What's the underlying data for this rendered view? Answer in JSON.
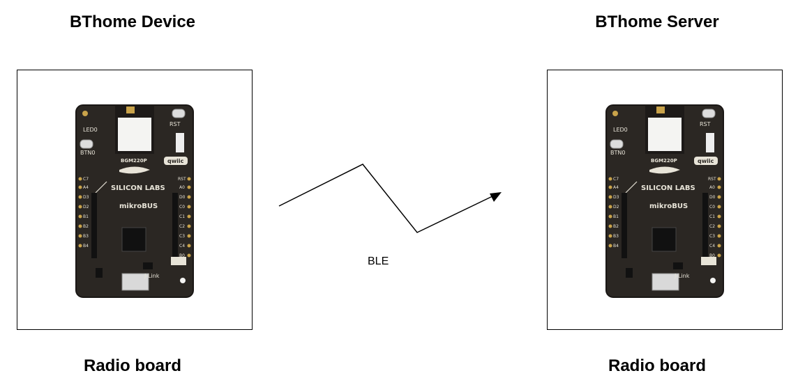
{
  "device": {
    "title": "BThome Device",
    "caption": "Radio board"
  },
  "server": {
    "title": "BThome Server",
    "caption": "Radio board"
  },
  "link": {
    "label": "BLE"
  },
  "board_labels": {
    "led": "LED0",
    "button": "BTN0",
    "reset": "RST",
    "module": "BGM220P",
    "qwiic": "qwiic",
    "brand": "SILICON LABS",
    "bus": "mikroBUS",
    "jlink": "J-Link",
    "left_pins": [
      "C7",
      "A4",
      "D3",
      "D2",
      "B1",
      "B2",
      "B3",
      "B4"
    ],
    "right_pins": [
      "RST",
      "A0",
      "D0",
      "C0",
      "C1",
      "C2",
      "C3",
      "C4",
      "B0"
    ]
  },
  "colors": {
    "board": "#2b2723",
    "silk": "#e8e4d8",
    "pad": "#c9a34a"
  }
}
